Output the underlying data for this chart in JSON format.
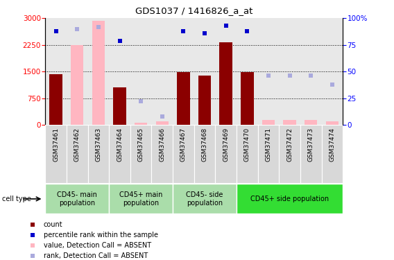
{
  "title": "GDS1037 / 1416826_a_at",
  "samples": [
    "GSM37461",
    "GSM37462",
    "GSM37463",
    "GSM37464",
    "GSM37465",
    "GSM37466",
    "GSM37467",
    "GSM37468",
    "GSM37469",
    "GSM37470",
    "GSM37471",
    "GSM37472",
    "GSM37473",
    "GSM37474"
  ],
  "count_present": [
    1430,
    null,
    null,
    1050,
    null,
    null,
    1490,
    1390,
    2320,
    1490,
    null,
    null,
    null,
    null
  ],
  "count_absent": [
    null,
    2250,
    2930,
    null,
    60,
    100,
    null,
    null,
    null,
    null,
    130,
    130,
    130,
    100
  ],
  "rank_present": [
    88,
    null,
    null,
    79,
    null,
    null,
    88,
    86,
    93,
    88,
    null,
    null,
    null,
    null
  ],
  "rank_absent": [
    null,
    90,
    92,
    null,
    22,
    8,
    null,
    null,
    null,
    null,
    46,
    46,
    46,
    38
  ],
  "groups": [
    {
      "label": "CD45- main\npopulation",
      "start": 0,
      "end": 2,
      "light": true
    },
    {
      "label": "CD45+ main\npopulation",
      "start": 3,
      "end": 5,
      "light": true
    },
    {
      "label": "CD45- side\npopulation",
      "start": 6,
      "end": 8,
      "light": true
    },
    {
      "label": "CD45+ side population",
      "start": 9,
      "end": 13,
      "light": false
    }
  ],
  "ylim_left": [
    0,
    3000
  ],
  "ylim_right": [
    0,
    100
  ],
  "yticks_left": [
    0,
    750,
    1500,
    2250,
    3000
  ],
  "yticks_right": [
    0,
    25,
    50,
    75,
    100
  ],
  "bar_color": "#8B0000",
  "bar_absent_color": "#FFB6C1",
  "rank_color": "#0000CC",
  "rank_absent_color": "#AAAADD",
  "group_light_color": "#AADDAA",
  "group_dark_color": "#33DD33",
  "cell_type_label": "cell type",
  "legend_items": [
    {
      "color": "#8B0000",
      "label": "count"
    },
    {
      "color": "#0000CC",
      "label": "percentile rank within the sample"
    },
    {
      "color": "#FFB6C1",
      "label": "value, Detection Call = ABSENT"
    },
    {
      "color": "#AAAADD",
      "label": "rank, Detection Call = ABSENT"
    }
  ]
}
